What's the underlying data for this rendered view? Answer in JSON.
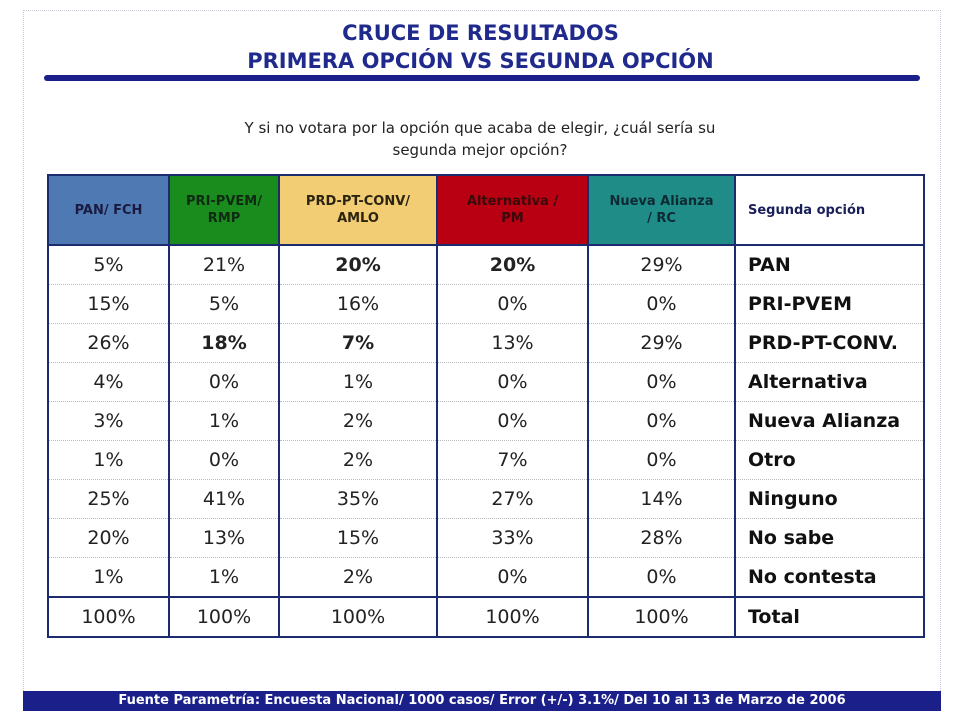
{
  "title_line1": "CRUCE DE RESULTADOS",
  "title_line2": "PRIMERA OPCIÓN VS SEGUNDA OPCIÓN",
  "question_line1": "Y si no votara por la opción que acaba de elegir, ¿cuál sería su",
  "question_line2": "segunda mejor opción?",
  "colors": {
    "title": "#1f2a8c",
    "pan": "#4f79b3",
    "pri": "#1a8c1e",
    "prd": "#f2cd74",
    "alt": "#b80012",
    "na": "#1f8c88",
    "footer_bg": "#1a1f8a"
  },
  "headers": {
    "pan": [
      "PAN/ FCH"
    ],
    "pri": [
      "PRI-PVEM/",
      "RMP"
    ],
    "prd": [
      "PRD-PT-CONV/",
      "AMLO"
    ],
    "alt": [
      "Alternativa /",
      "PM"
    ],
    "na": [
      "Nueva Alianza",
      "/ RC"
    ],
    "label": "Segunda opción"
  },
  "rows": [
    {
      "label": "PAN",
      "values": [
        "5%",
        "21%",
        "20%",
        "20%",
        "29%"
      ]
    },
    {
      "label": "PRI-PVEM",
      "values": [
        "15%",
        "5%",
        "16%",
        "0%",
        "0%"
      ]
    },
    {
      "label": "PRD-PT-CONV.",
      "values": [
        "26%",
        "18%",
        "7%",
        "13%",
        "29%"
      ]
    },
    {
      "label": "Alternativa",
      "values": [
        "4%",
        "0%",
        "1%",
        "0%",
        "0%"
      ]
    },
    {
      "label": "Nueva Alianza",
      "values": [
        "3%",
        "1%",
        "2%",
        "0%",
        "0%"
      ]
    },
    {
      "label": "Otro",
      "values": [
        "1%",
        "0%",
        "2%",
        "7%",
        "0%"
      ]
    },
    {
      "label": "Ninguno",
      "values": [
        "25%",
        "41%",
        "35%",
        "27%",
        "14%"
      ]
    },
    {
      "label": "No sabe",
      "values": [
        "20%",
        "13%",
        "15%",
        "33%",
        "28%"
      ]
    },
    {
      "label": "No contesta",
      "values": [
        "1%",
        "1%",
        "2%",
        "0%",
        "0%"
      ]
    },
    {
      "label": "Total",
      "values": [
        "100%",
        "100%",
        "100%",
        "100%",
        "100%"
      ]
    }
  ],
  "footer": "Fuente Parametría: Encuesta Nacional/ 1000 casos/ Error (+/-) 3.1%/ Del 10 al 13 de Marzo  de 2006"
}
